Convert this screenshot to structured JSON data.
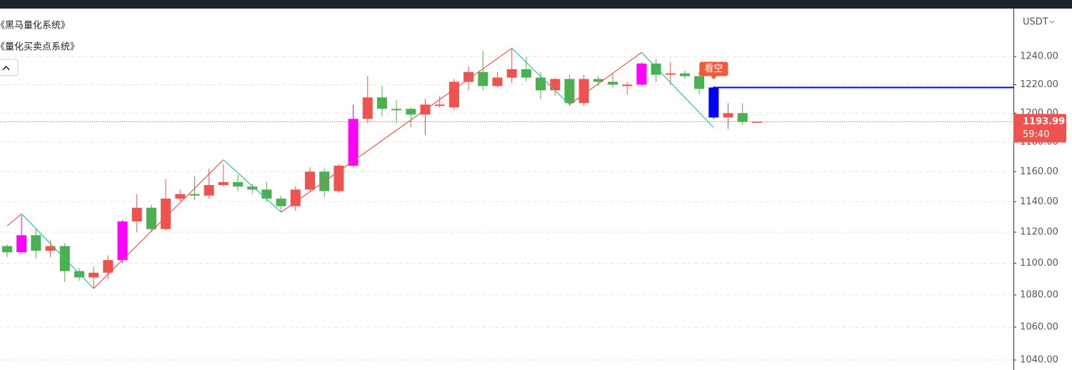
{
  "chart_data": {
    "type": "candlestick",
    "indicators": [
      "《黑马量化系统》",
      "《量化买卖点系统》"
    ],
    "currency": "USDT",
    "open": [
      1111,
      1107,
      1118,
      1108,
      1111,
      1095,
      1091,
      1094,
      1102,
      1127,
      1136,
      1122,
      1142,
      1145,
      1144,
      1151,
      1153,
      1150,
      1148,
      1142,
      1137,
      1148,
      1160,
      1147,
      1164,
      1196,
      1211,
      1203,
      1203,
      1199,
      1205,
      1204,
      1222,
      1229,
      1219,
      1225,
      1231,
      1225,
      1216,
      1224,
      1207,
      1224,
      1222,
      1219,
      1220,
      1235,
      1227,
      1228,
      1226,
      1218,
      1197,
      1200,
      1194
    ],
    "high": [
      1112,
      1131,
      1122,
      1115,
      1113,
      1097,
      1098,
      1105,
      1128,
      1145,
      1138,
      1155,
      1148,
      1157,
      1162,
      1165,
      1158,
      1152,
      1153,
      1144,
      1150,
      1163,
      1162,
      1165,
      1206,
      1226,
      1219,
      1209,
      1204,
      1210,
      1212,
      1224,
      1233,
      1244,
      1229,
      1246,
      1240,
      1229,
      1225,
      1227,
      1227,
      1226,
      1228,
      1222,
      1236,
      1238,
      1236,
      1230,
      1229,
      1219,
      1207,
      1207,
      1194
    ],
    "low": [
      1104,
      1106,
      1103,
      1104,
      1088,
      1089,
      1084,
      1090,
      1100,
      1120,
      1120,
      1121,
      1140,
      1141,
      1142,
      1150,
      1147,
      1145,
      1140,
      1133,
      1134,
      1147,
      1143,
      1146,
      1163,
      1193,
      1198,
      1193,
      1190,
      1185,
      1204,
      1202,
      1216,
      1216,
      1218,
      1221,
      1222,
      1210,
      1212,
      1205,
      1205,
      1219,
      1218,
      1213,
      1219,
      1222,
      1220,
      1224,
      1213,
      1196,
      1189,
      1192,
      1194
    ],
    "close": [
      1107,
      1118,
      1108,
      1111,
      1095,
      1091,
      1094,
      1102,
      1127,
      1136,
      1122,
      1142,
      1145,
      1144,
      1151,
      1153,
      1150,
      1148,
      1142,
      1137,
      1148,
      1160,
      1147,
      1164,
      1196,
      1211,
      1203,
      1202,
      1199,
      1206,
      1206,
      1222,
      1229,
      1219,
      1225,
      1231,
      1225,
      1216,
      1224,
      1207,
      1224,
      1222,
      1220,
      1220,
      1235,
      1227,
      1228,
      1226,
      1217,
      1197,
      1200,
      1194,
      1194
    ],
    "colors": [
      "#4caf50",
      "#ff00ff",
      "#4caf50",
      "#ef5350",
      "#4caf50",
      "#4caf50",
      "#ef5350",
      "#ef5350",
      "#ff00ff",
      "#ef5350",
      "#4caf50",
      "#ef5350",
      "#ef5350",
      "#4caf50",
      "#ef5350",
      "#ef5350",
      "#4caf50",
      "#4caf50",
      "#4caf50",
      "#4caf50",
      "#ef5350",
      "#ef5350",
      "#4caf50",
      "#ef5350",
      "#ff00ff",
      "#ef5350",
      "#4caf50",
      "#4caf50",
      "#4caf50",
      "#ef5350",
      "#ef5350",
      "#ef5350",
      "#ef5350",
      "#4caf50",
      "#ef5350",
      "#ef5350",
      "#4caf50",
      "#4caf50",
      "#ef5350",
      "#4caf50",
      "#ef5350",
      "#4caf50",
      "#4caf50",
      "#ef5350",
      "#ff00ff",
      "#4caf50",
      "#ef5350",
      "#4caf50",
      "#4caf50",
      "#0000ff",
      "#ef5350",
      "#4caf50",
      "#ef5350"
    ],
    "zigzag": {
      "x": [
        0,
        1,
        6,
        15,
        19,
        35,
        39,
        44,
        49
      ],
      "values": [
        1124,
        1132,
        1084,
        1168,
        1133,
        1246,
        1206,
        1243,
        1190
      ],
      "up_color": "#ef5350",
      "down_color": "#26c6a0"
    },
    "level_line": {
      "value": 1218,
      "start": 49,
      "color": "#0000ff"
    },
    "signal": {
      "index": 49,
      "label": "看空",
      "color": "#f05a3a"
    },
    "last_price": {
      "value": 1193.99,
      "label": "1193.99",
      "countdown": "59:40",
      "color": "#ef5350"
    },
    "ylim": [
      1034,
      1275
    ],
    "log_scale": true,
    "grid": true,
    "yticks": [
      {
        "value": 1040,
        "label": "1040.00"
      },
      {
        "value": 1060,
        "label": "1060.00"
      },
      {
        "value": 1080,
        "label": "1080.00"
      },
      {
        "value": 1100,
        "label": "1100.00"
      },
      {
        "value": 1120,
        "label": "1120.00"
      },
      {
        "value": 1140,
        "label": "1140.00"
      },
      {
        "value": 1160,
        "label": "1160.00"
      },
      {
        "value": 1180,
        "label": "1180.00"
      },
      {
        "value": 1200,
        "label": "1200.00"
      },
      {
        "value": 1220,
        "label": "1220.00"
      },
      {
        "value": 1240,
        "label": "1240.00"
      }
    ]
  }
}
